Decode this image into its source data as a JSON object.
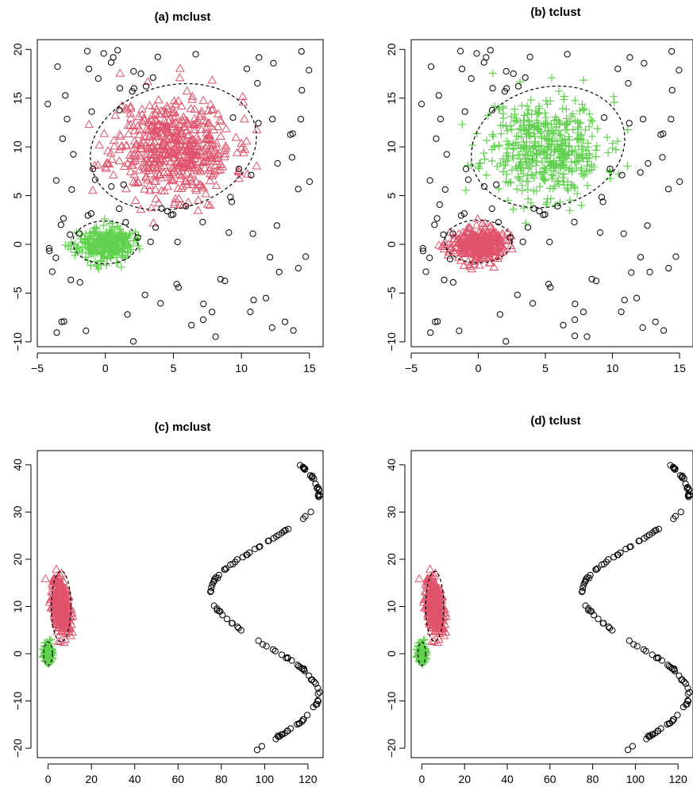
{
  "colors": {
    "red": "#DF536B",
    "green": "#61D04F",
    "noise": "#000000"
  },
  "chart_data": [
    {
      "type": "scatter",
      "title": "(a) mclust",
      "xlim": [
        -5,
        16
      ],
      "ylim": [
        -10.5,
        21
      ],
      "x_ticks": [
        -5,
        0,
        5,
        10,
        15
      ],
      "y_ticks": [
        -10,
        -5,
        0,
        5,
        10,
        15,
        20
      ],
      "x_tick_labels": [
        "−5",
        "0",
        "5",
        "10",
        "15"
      ],
      "y_tick_labels": [
        "−10",
        "−5",
        "0",
        "5",
        "10",
        "15",
        "20"
      ],
      "series": [
        {
          "marker": "triangle",
          "color": "#DF536B",
          "center": [
            5,
            10
          ],
          "spread": [
            2.2,
            2.6
          ],
          "n": 520,
          "seed": 11
        },
        {
          "marker": "plus",
          "color": "#61D04F",
          "center": [
            0,
            0
          ],
          "spread": [
            1.0,
            0.85
          ],
          "n": 320,
          "seed": 23
        },
        {
          "marker": "circle",
          "color": "#000000",
          "uniform": [
            [
              -4.5,
              15.5
            ],
            [
              -10,
              20
            ]
          ],
          "n": 105,
          "seed": 37
        }
      ],
      "ellipses": [
        {
          "center": [
            5.0,
            10.0
          ],
          "radii": [
            6.2,
            6.3
          ],
          "angle": -15
        },
        {
          "center": [
            0.0,
            0.2
          ],
          "radii": [
            2.4,
            2.2
          ],
          "angle": 0
        }
      ]
    },
    {
      "type": "scatter",
      "title": "(b) tclust",
      "xlim": [
        -5,
        16
      ],
      "ylim": [
        -10.5,
        21
      ],
      "x_ticks": [
        -5,
        0,
        5,
        10,
        15
      ],
      "y_ticks": [
        -10,
        -5,
        0,
        5,
        10,
        15,
        20
      ],
      "x_tick_labels": [
        "−5",
        "0",
        "5",
        "10",
        "15"
      ],
      "y_tick_labels": [
        "−10",
        "−5",
        "0",
        "5",
        "10",
        "15",
        "20"
      ],
      "series": [
        {
          "marker": "plus",
          "color": "#61D04F",
          "center": [
            5,
            10
          ],
          "spread": [
            2.2,
            2.6
          ],
          "n": 480,
          "seed": 11
        },
        {
          "marker": "triangle",
          "color": "#DF536B",
          "center": [
            0,
            0
          ],
          "spread": [
            1.0,
            0.85
          ],
          "n": 320,
          "seed": 23
        },
        {
          "marker": "circle",
          "color": "#000000",
          "uniform": [
            [
              -4.5,
              15.5
            ],
            [
              -10,
              20
            ]
          ],
          "n": 110,
          "seed": 37
        }
      ],
      "ellipses": [
        {
          "center": [
            5.2,
            10.0
          ],
          "radii": [
            5.8,
            6.1
          ],
          "angle": -15
        },
        {
          "center": [
            0.0,
            0.3
          ],
          "radii": [
            2.5,
            2.2
          ],
          "angle": 0
        }
      ]
    },
    {
      "type": "scatter",
      "title": "(c) mclust",
      "xlim": [
        -5,
        127
      ],
      "ylim": [
        -22,
        43
      ],
      "x_ticks": [
        0,
        20,
        40,
        60,
        80,
        100,
        120
      ],
      "y_ticks": [
        -20,
        -10,
        0,
        10,
        20,
        30,
        40
      ],
      "x_tick_labels": [
        "0",
        "20",
        "40",
        "60",
        "80",
        "100",
        "120"
      ],
      "y_tick_labels": [
        "−20",
        "−10",
        "0",
        "10",
        "20",
        "30",
        "40"
      ],
      "series": [
        {
          "marker": "triangle",
          "color": "#DF536B",
          "center": [
            6,
            10
          ],
          "spread": [
            2.0,
            3.0
          ],
          "n": 320,
          "seed": 51,
          "shape": "tilted"
        },
        {
          "marker": "plus",
          "color": "#61D04F",
          "center": [
            0,
            0
          ],
          "spread": [
            0.9,
            1.0
          ],
          "n": 200,
          "seed": 63
        },
        {
          "marker": "circle",
          "color": "#000000",
          "wave": {
            "amp": 25,
            "mid": 100,
            "ymin": -21,
            "ymax": 41
          },
          "n": 120,
          "seed": 71
        }
      ],
      "ellipses": [
        {
          "center": [
            6.0,
            10.0
          ],
          "radii": [
            4.5,
            7.5
          ],
          "angle": 0
        },
        {
          "center": [
            0.0,
            0.0
          ],
          "radii": [
            2.0,
            2.5
          ],
          "angle": 0
        }
      ]
    },
    {
      "type": "scatter",
      "title": "(d) tclust",
      "xlim": [
        -5,
        127
      ],
      "ylim": [
        -22,
        43
      ],
      "x_ticks": [
        0,
        20,
        40,
        60,
        80,
        100,
        120
      ],
      "y_ticks": [
        -20,
        -10,
        0,
        10,
        20,
        30,
        40
      ],
      "x_tick_labels": [
        "0",
        "20",
        "40",
        "60",
        "80",
        "100",
        "120"
      ],
      "y_tick_labels": [
        "−20",
        "−10",
        "0",
        "10",
        "20",
        "30",
        "40"
      ],
      "series": [
        {
          "marker": "triangle",
          "color": "#DF536B",
          "center": [
            6,
            10
          ],
          "spread": [
            2.0,
            3.0
          ],
          "n": 310,
          "seed": 51,
          "shape": "tilted"
        },
        {
          "marker": "plus",
          "color": "#61D04F",
          "center": [
            0,
            0
          ],
          "spread": [
            0.9,
            1.0
          ],
          "n": 200,
          "seed": 63
        },
        {
          "marker": "circle",
          "color": "#000000",
          "wave": {
            "amp": 25,
            "mid": 100,
            "ymin": -21,
            "ymax": 41
          },
          "n": 120,
          "seed": 71
        }
      ],
      "ellipses": [
        {
          "center": [
            6.0,
            10.0
          ],
          "radii": [
            4.2,
            7.4
          ],
          "angle": 0
        },
        {
          "center": [
            0.0,
            0.0
          ],
          "radii": [
            1.8,
            2.5
          ],
          "angle": 0
        }
      ]
    }
  ]
}
